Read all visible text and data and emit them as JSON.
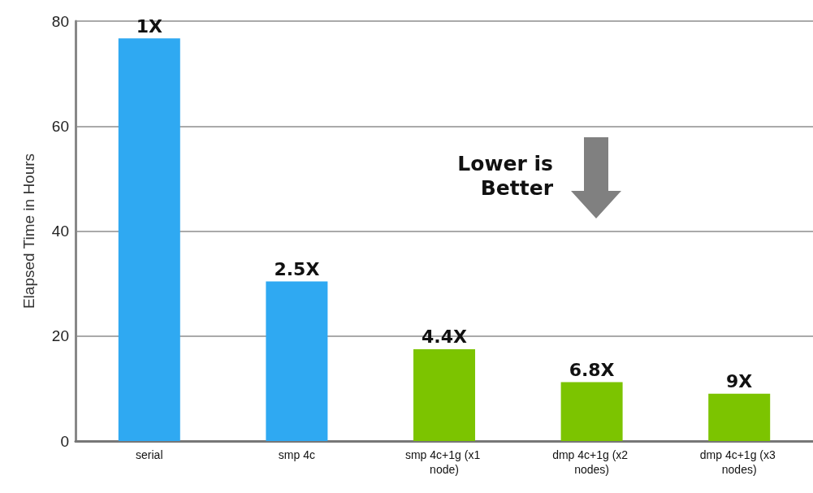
{
  "chart_data": {
    "type": "bar",
    "ylabel": "Elapsed Time in Hours",
    "categories": [
      "serial",
      "smp 4c",
      "smp 4c+1g (x1 node)",
      "dmp 4c+1g (x2 nodes)",
      "dmp 4c+1g (x3 nodes)"
    ],
    "values": [
      76.7,
      30.4,
      17.5,
      11.2,
      9.0
    ],
    "colors": [
      "#2fa9f2",
      "#2fa9f2",
      "#7cc400",
      "#7cc400",
      "#7cc400"
    ],
    "annotations": [
      "Lower is Better",
      {
        "text": "1X",
        "x": "serial",
        "y": 76.7
      },
      {
        "text": "2.5X",
        "x": "smp 4c",
        "y": 30.4
      },
      {
        "text": "4.4X",
        "x": "smp 4c+1g (x1 node)",
        "y": 17.5
      },
      {
        "text": "6.8X",
        "x": "dmp 4c+1g (x2 nodes)",
        "y": 11.2
      },
      {
        "text": "9X",
        "x": "dmp 4c+1g (x3 nodes)",
        "y": 9.0
      }
    ],
    "ylim": [
      0,
      80
    ],
    "yticks": [
      0,
      20,
      40,
      60,
      80
    ],
    "grid": "y"
  }
}
